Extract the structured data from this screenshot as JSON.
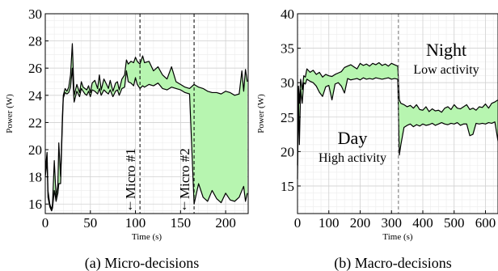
{
  "chart_data": [
    {
      "type": "line",
      "caption": "(a) Micro-decisions",
      "xlabel": "Time (s)",
      "ylabel": "Power (W)",
      "xlim": [
        0,
        225
      ],
      "ylim": [
        15.3,
        30
      ],
      "xticks": [
        "0",
        "50",
        "100",
        "150",
        "200"
      ],
      "yticks": [
        "16",
        "18",
        "20",
        "22",
        "24",
        "26",
        "28",
        "30"
      ],
      "grid": true,
      "fill_color": "#b7f5b0",
      "markers": [
        {
          "x": 105,
          "label": "Micro #1"
        },
        {
          "x": 165,
          "label": "Micro #2"
        }
      ],
      "series": [
        {
          "x": [
            0,
            2,
            3,
            5,
            7,
            8,
            10,
            12,
            14,
            15,
            17,
            19,
            20,
            22,
            24,
            26,
            28,
            30,
            32,
            35,
            38,
            40,
            42,
            44,
            46,
            48,
            50,
            52,
            55,
            58,
            60,
            62,
            65,
            68,
            70,
            72,
            75,
            78,
            80,
            82,
            85,
            88,
            90,
            92,
            95,
            98,
            100,
            102,
            105,
            108,
            110,
            115,
            120,
            125,
            130,
            135,
            140,
            145,
            150,
            155,
            160,
            165,
            170,
            175,
            180,
            185,
            190,
            195,
            200,
            205,
            210,
            215,
            218,
            220,
            222,
            224
          ],
          "values": [
            18.5,
            19.8,
            17,
            16,
            15.6,
            16,
            19.2,
            16.5,
            17.5,
            20.5,
            18,
            22.5,
            24,
            24.5,
            24.3,
            24.6,
            25.5,
            27.8,
            24,
            24.8,
            24.2,
            25,
            24.6,
            24.5,
            24.4,
            24.7,
            24.2,
            24.9,
            25.1,
            24.5,
            25.5,
            24.4,
            25.2,
            24.8,
            24.5,
            25.1,
            24.3,
            24.9,
            25,
            24.4,
            25.2,
            25.5,
            26.6,
            26.3,
            26.5,
            26.4,
            26.8,
            26.5,
            26.3,
            26.9,
            26.4,
            26.5,
            25.8,
            26.1,
            25.5,
            25.2,
            26.1,
            25,
            24.8,
            24.6,
            24.5,
            24.8,
            24.6,
            24.5,
            24.3,
            24.2,
            24.2,
            24.1,
            24.3,
            24.2,
            24,
            24.1,
            25.8,
            24.3,
            25.9,
            25
          ]
        },
        {
          "x": [
            0,
            2,
            3,
            5,
            7,
            8,
            10,
            12,
            14,
            15,
            17,
            19,
            20,
            22,
            24,
            26,
            28,
            30,
            32,
            35,
            38,
            40,
            42,
            44,
            46,
            48,
            50,
            52,
            55,
            58,
            60,
            62,
            65,
            68,
            70,
            72,
            75,
            78,
            80,
            82,
            85,
            88,
            90,
            92,
            95,
            98,
            100,
            102,
            105,
            108,
            110,
            115,
            120,
            125,
            130,
            135,
            140,
            145,
            150,
            155,
            160,
            165,
            170,
            175,
            180,
            185,
            190,
            195,
            200,
            205,
            210,
            215,
            218,
            220,
            222,
            224
          ],
          "values": [
            18,
            19.2,
            16.5,
            15.8,
            15.5,
            15.7,
            17,
            16.2,
            16.8,
            17.5,
            17.5,
            22,
            23.8,
            24.2,
            24.1,
            24.2,
            24.6,
            26,
            23.5,
            24.3,
            23.9,
            24.5,
            24.3,
            24.1,
            24,
            24.3,
            23.9,
            24.4,
            24.3,
            24.1,
            24.5,
            24,
            24.4,
            24.2,
            24.1,
            24.4,
            23.9,
            24.3,
            24.4,
            24,
            24.5,
            24.6,
            25.8,
            25,
            24.9,
            24.7,
            25.3,
            24.8,
            24.5,
            24.7,
            24.6,
            24.8,
            24.7,
            24.9,
            24.5,
            24.4,
            24.6,
            24.5,
            24.4,
            24.2,
            24.1,
            16,
            17.5,
            16.5,
            16.2,
            17,
            16.4,
            16.1,
            16.8,
            16.3,
            16.2,
            16.5,
            17,
            17.3,
            16.2,
            16.8
          ]
        }
      ]
    },
    {
      "type": "line",
      "caption": "(b) Macro-decisions",
      "xlabel": "Time (s)",
      "ylabel": "Power (W)",
      "xlim": [
        0,
        640
      ],
      "ylim": [
        11,
        40
      ],
      "xticks": [
        "0",
        "100",
        "200",
        "300",
        "400",
        "500",
        "600"
      ],
      "yticks": [
        "15",
        "20",
        "25",
        "30",
        "35",
        "40"
      ],
      "grid": true,
      "fill_color": "#b7f5b0",
      "markers": [
        {
          "x": 322,
          "label": ""
        }
      ],
      "annotations": [
        {
          "title": "Day",
          "subtitle": "High activity"
        },
        {
          "title": "Night",
          "subtitle": "Low activity"
        }
      ],
      "series": [
        {
          "x": [
            0,
            3,
            6,
            10,
            15,
            20,
            25,
            30,
            40,
            50,
            60,
            70,
            80,
            90,
            100,
            110,
            120,
            130,
            140,
            150,
            160,
            170,
            180,
            190,
            200,
            210,
            220,
            230,
            240,
            250,
            260,
            270,
            280,
            290,
            300,
            310,
            320,
            325,
            330,
            340,
            350,
            360,
            370,
            380,
            390,
            400,
            410,
            420,
            430,
            440,
            450,
            460,
            470,
            480,
            490,
            500,
            510,
            520,
            530,
            540,
            550,
            560,
            570,
            580,
            590,
            600,
            610,
            620,
            630,
            640
          ],
          "values": [
            18,
            29.5,
            27,
            30.5,
            29,
            31,
            30.8,
            32,
            31.5,
            31.8,
            31.2,
            31.5,
            30.8,
            31.2,
            31,
            30.9,
            31.2,
            31.4,
            31.6,
            32.2,
            32.4,
            32.6,
            32.3,
            32,
            32.8,
            32.5,
            32.7,
            32.4,
            32.8,
            32.6,
            32.9,
            32.5,
            32.7,
            32.4,
            32.8,
            32.6,
            32.4,
            27.5,
            27,
            26.8,
            26.5,
            26.7,
            26.3,
            26.8,
            26.1,
            26,
            26.5,
            25.8,
            26.2,
            25.9,
            26,
            25.7,
            26.3,
            26.5,
            26.1,
            26.8,
            26.3,
            26.2,
            26.5,
            26.8,
            26.1,
            26.3,
            26,
            26.5,
            26.4,
            26.9,
            26.3,
            27,
            27.2,
            27.5
          ]
        },
        {
          "x": [
            0,
            3,
            6,
            10,
            15,
            20,
            25,
            30,
            40,
            50,
            60,
            70,
            80,
            90,
            100,
            110,
            120,
            130,
            140,
            150,
            160,
            170,
            180,
            190,
            200,
            210,
            220,
            230,
            240,
            250,
            260,
            270,
            280,
            290,
            300,
            310,
            320,
            325,
            330,
            340,
            350,
            360,
            370,
            380,
            390,
            400,
            410,
            420,
            430,
            440,
            450,
            460,
            470,
            480,
            490,
            500,
            510,
            520,
            530,
            540,
            550,
            560,
            570,
            580,
            590,
            600,
            610,
            620,
            630,
            640
          ],
          "values": [
            16,
            28,
            21,
            29,
            27,
            30,
            29.8,
            30.5,
            30.2,
            30,
            29.5,
            28.6,
            28,
            29.4,
            29.6,
            27.5,
            29.8,
            30,
            29.5,
            28.5,
            30.6,
            30.4,
            30.5,
            30.6,
            30.4,
            30.7,
            30.5,
            30.6,
            30.5,
            30.7,
            30.6,
            30.5,
            30.6,
            30.7,
            30.5,
            30.6,
            30.5,
            19.5,
            21,
            23.5,
            23.8,
            24,
            23.6,
            23.9,
            23.7,
            24,
            23.8,
            23.9,
            24.1,
            23.8,
            24,
            24.2,
            24,
            23.9,
            24.1,
            24,
            24.2,
            23.8,
            24,
            24,
            22.3,
            22.5,
            24.1,
            24,
            24.1,
            24,
            24.2,
            24.1,
            24.3,
            21.5
          ]
        }
      ]
    }
  ]
}
